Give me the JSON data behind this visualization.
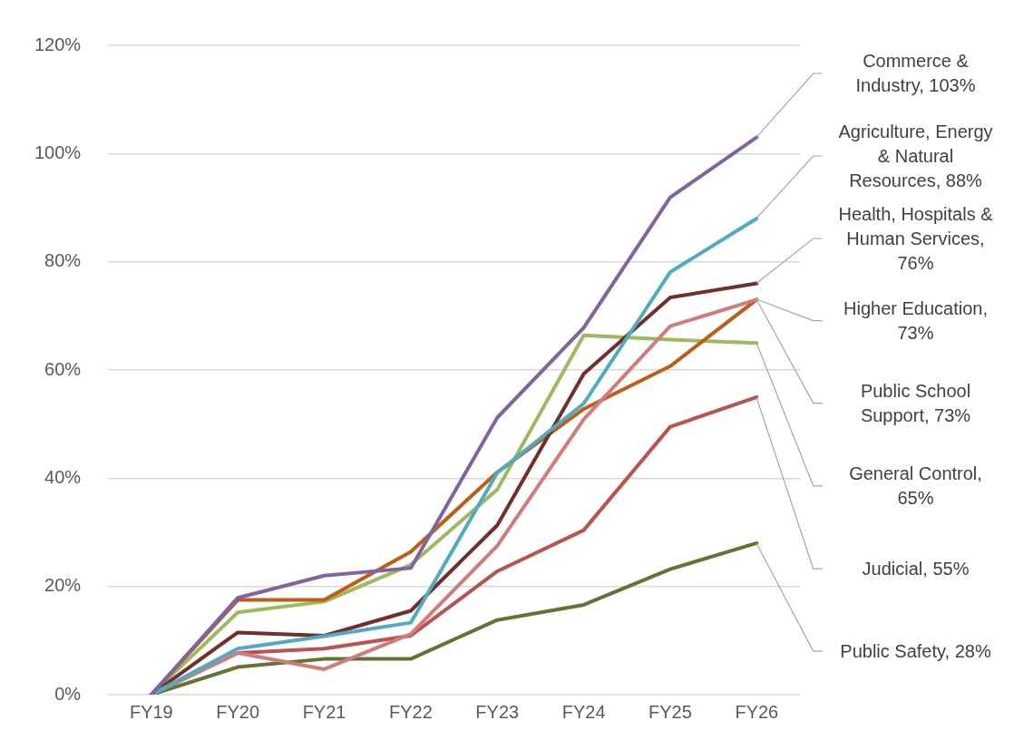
{
  "chart_data": {
    "type": "line",
    "categories": [
      "FY19",
      "FY20",
      "FY21",
      "FY22",
      "FY23",
      "FY24",
      "FY25",
      "FY26"
    ],
    "ylim": [
      0,
      120
    ],
    "yticks": [
      {
        "value": 0,
        "label": "0%"
      },
      {
        "value": 20,
        "label": "20%"
      },
      {
        "value": 40,
        "label": "40%"
      },
      {
        "value": 60,
        "label": "60%"
      },
      {
        "value": 80,
        "label": "80%"
      },
      {
        "value": 100,
        "label": "100%"
      },
      {
        "value": 120,
        "label": "120%"
      }
    ],
    "grid": "y",
    "legend": false,
    "marker": "none",
    "line_style": "solid",
    "series": [
      {
        "name": "Commerce & Industry, 103%",
        "color": "#8064a2",
        "values": [
          0,
          17.9,
          22.0,
          23.4,
          51.2,
          67.8,
          91.9,
          103
        ]
      },
      {
        "name": "Agriculture, Energy & Natural Resources, 88%",
        "color": "#4bacc6",
        "values": [
          0,
          8.5,
          10.8,
          13.3,
          41,
          53.8,
          78.1,
          88
        ]
      },
      {
        "name": "Health, Hospitals & Human Services, 76%",
        "color": "#772c2a",
        "values": [
          0,
          11.5,
          10.9,
          15.5,
          31.3,
          59.3,
          73.4,
          76
        ]
      },
      {
        "name": "Higher Education, 73%",
        "color": "#d47a78",
        "values": [
          0,
          7.7,
          4.7,
          11.2,
          27.5,
          50.9,
          68.1,
          73
        ]
      },
      {
        "name": "Public School Support, 73%",
        "color": "#c55a11",
        "values": [
          0,
          17.5,
          17.5,
          26.4,
          41.1,
          52.8,
          60.7,
          73
        ]
      },
      {
        "name": "General Control, 65%",
        "color": "#9bbb59",
        "values": [
          0,
          15.2,
          17.2,
          24.0,
          37.9,
          66.4,
          65.6,
          65
        ]
      },
      {
        "name": "Judicial, 55%",
        "color": "#c0504d",
        "values": [
          0,
          7.7,
          8.5,
          10.9,
          22.8,
          30.4,
          49.5,
          55
        ]
      },
      {
        "name": "Public Safety, 28%",
        "color": "#5f7530",
        "values": [
          0,
          5.1,
          6.6,
          6.6,
          13.8,
          16.6,
          23.2,
          28
        ]
      }
    ]
  }
}
